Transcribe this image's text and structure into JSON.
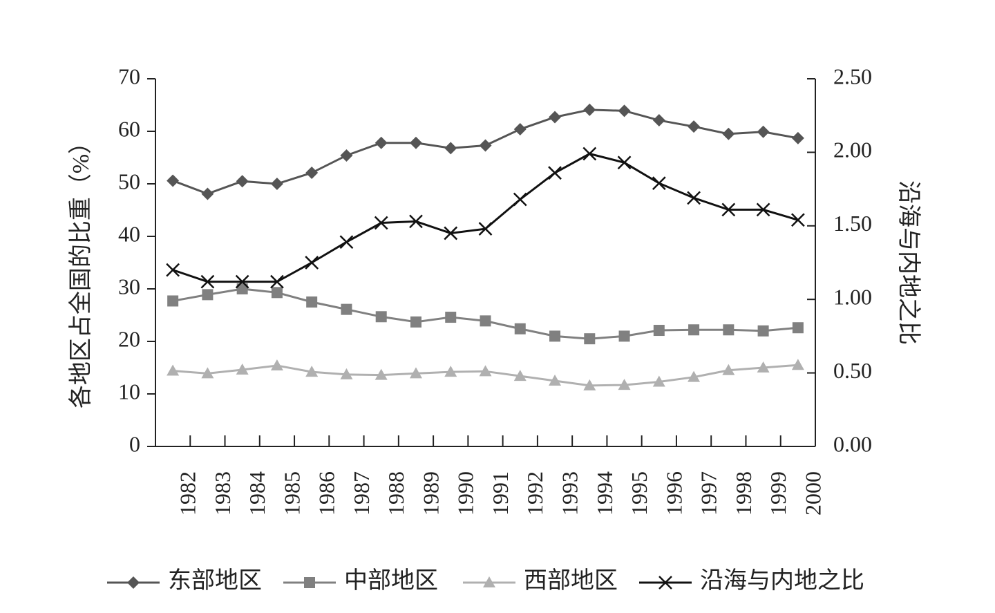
{
  "chart_data": {
    "type": "line",
    "y_label": "各地区占全国的比重（%）",
    "y2_label": "沿海与内地之比",
    "categories": [
      "1982",
      "1983",
      "1984",
      "1985",
      "1986",
      "1987",
      "1988",
      "1989",
      "1990",
      "1991",
      "1992",
      "1993",
      "1994",
      "1995",
      "1996",
      "1997",
      "1998",
      "1999",
      "2000"
    ],
    "ylim": [
      0,
      70
    ],
    "yticks": [
      0,
      10,
      20,
      30,
      40,
      50,
      60,
      70
    ],
    "y2lim": [
      0,
      2.5
    ],
    "y2ticks": [
      {
        "value": 0,
        "label": "0.00"
      },
      {
        "value": 0.5,
        "label": "0.50"
      },
      {
        "value": 1,
        "label": "1.00"
      },
      {
        "value": 1.5,
        "label": "1.50"
      },
      {
        "value": 2,
        "label": "2.00"
      },
      {
        "value": 2.5,
        "label": "2.50"
      }
    ],
    "legend": "bottom",
    "series": [
      {
        "name": "东部地区",
        "color": "#555555",
        "marker": "diamond",
        "values": [
          50.6,
          48.1,
          50.5,
          50.0,
          52.1,
          55.4,
          57.8,
          57.8,
          56.8,
          57.3,
          60.4,
          62.7,
          64.1,
          63.9,
          62.1,
          60.9,
          59.5,
          59.9,
          58.7
        ]
      },
      {
        "name": "中部地区",
        "color": "#808080",
        "marker": "square",
        "values": [
          27.7,
          28.9,
          30.0,
          29.3,
          27.5,
          26.1,
          24.7,
          23.7,
          24.6,
          23.9,
          22.4,
          21.0,
          20.5,
          21.0,
          22.1,
          22.2,
          22.2,
          22.0,
          22.6
        ]
      },
      {
        "name": "西部地区",
        "color": "#b0b0b0",
        "marker": "triangle",
        "values": [
          14.4,
          13.9,
          14.6,
          15.4,
          14.2,
          13.7,
          13.6,
          13.9,
          14.2,
          14.3,
          13.4,
          12.5,
          11.6,
          11.7,
          12.3,
          13.2,
          14.5,
          15.0,
          15.5
        ]
      },
      {
        "name": "沿海与内地之比",
        "color": "#111111",
        "marker": "x",
        "axis": "y2",
        "values": [
          1.2,
          1.12,
          1.12,
          1.12,
          1.25,
          1.39,
          1.52,
          1.53,
          1.45,
          1.48,
          1.68,
          1.86,
          1.99,
          1.93,
          1.79,
          1.69,
          1.61,
          1.61,
          1.54
        ]
      }
    ]
  }
}
